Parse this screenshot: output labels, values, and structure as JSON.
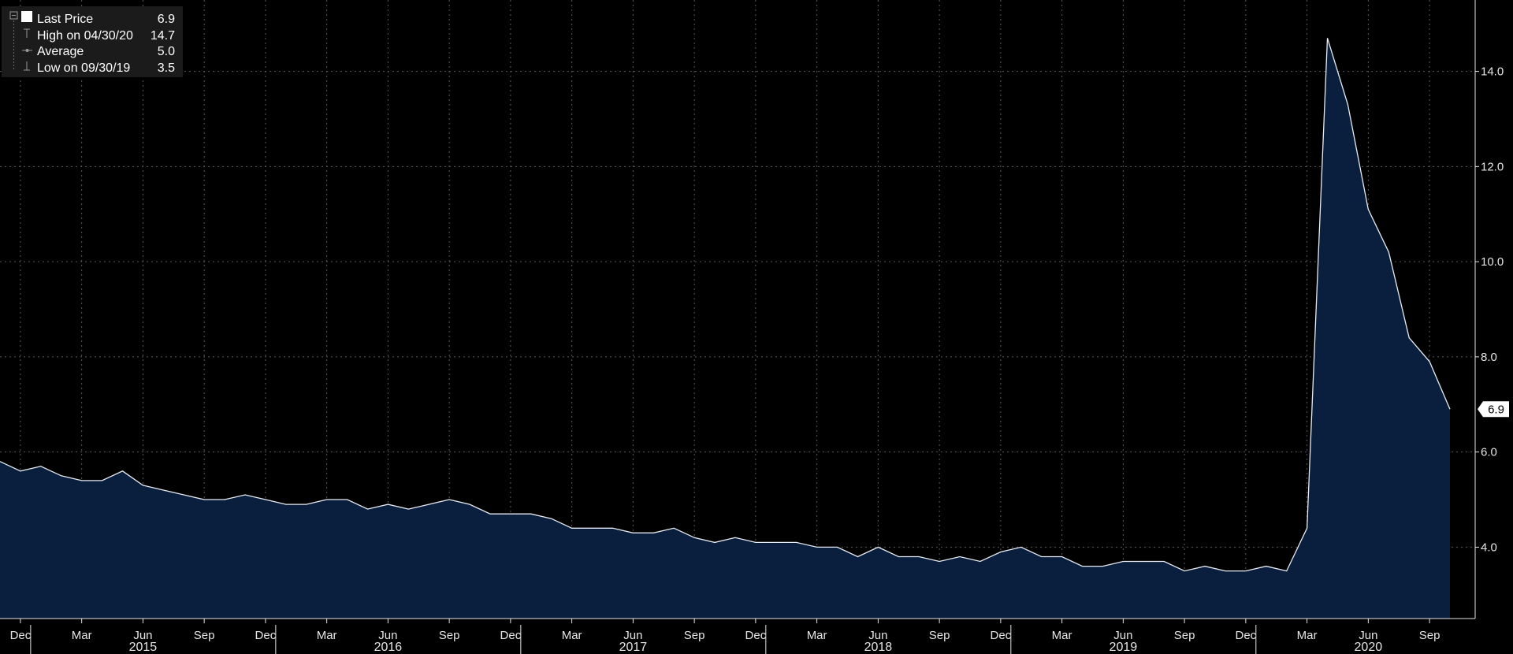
{
  "legend": {
    "items": [
      {
        "label": "Last Price",
        "value": "6.9",
        "symbol": "square-icon"
      },
      {
        "label": "High on 04/30/20",
        "value": "14.7",
        "symbol": "high-marker-icon"
      },
      {
        "label": "Average",
        "value": "5.0",
        "symbol": "average-marker-icon"
      },
      {
        "label": "Low on 09/30/19",
        "value": "3.5",
        "symbol": "low-marker-icon"
      }
    ]
  },
  "last_price_tag": "6.9",
  "colors": {
    "background": "#000000",
    "area_fill": "#0a1f3d",
    "line": "#e8ecf2",
    "grid": "#5a5a5a",
    "text": "#e6e6e6"
  },
  "chart_data": {
    "type": "area",
    "x": [
      "2014-11",
      "2014-12",
      "2015-01",
      "2015-02",
      "2015-03",
      "2015-04",
      "2015-05",
      "2015-06",
      "2015-07",
      "2015-08",
      "2015-09",
      "2015-10",
      "2015-11",
      "2015-12",
      "2016-01",
      "2016-02",
      "2016-03",
      "2016-04",
      "2016-05",
      "2016-06",
      "2016-07",
      "2016-08",
      "2016-09",
      "2016-10",
      "2016-11",
      "2016-12",
      "2017-01",
      "2017-02",
      "2017-03",
      "2017-04",
      "2017-05",
      "2017-06",
      "2017-07",
      "2017-08",
      "2017-09",
      "2017-10",
      "2017-11",
      "2017-12",
      "2018-01",
      "2018-02",
      "2018-03",
      "2018-04",
      "2018-05",
      "2018-06",
      "2018-07",
      "2018-08",
      "2018-09",
      "2018-10",
      "2018-11",
      "2018-12",
      "2019-01",
      "2019-02",
      "2019-03",
      "2019-04",
      "2019-05",
      "2019-06",
      "2019-07",
      "2019-08",
      "2019-09",
      "2019-10",
      "2019-11",
      "2019-12",
      "2020-01",
      "2020-02",
      "2020-03",
      "2020-04",
      "2020-05",
      "2020-06",
      "2020-07",
      "2020-08",
      "2020-09",
      "2020-10"
    ],
    "series": [
      {
        "values": [
          5.8,
          5.6,
          5.7,
          5.5,
          5.4,
          5.4,
          5.6,
          5.3,
          5.2,
          5.1,
          5.0,
          5.0,
          5.1,
          5.0,
          4.9,
          4.9,
          5.0,
          5.0,
          4.8,
          4.9,
          4.8,
          4.9,
          5.0,
          4.9,
          4.7,
          4.7,
          4.7,
          4.6,
          4.4,
          4.4,
          4.4,
          4.3,
          4.3,
          4.4,
          4.2,
          4.1,
          4.2,
          4.1,
          4.1,
          4.1,
          4.0,
          4.0,
          3.8,
          4.0,
          3.8,
          3.8,
          3.7,
          3.8,
          3.7,
          3.9,
          4.0,
          3.8,
          3.8,
          3.6,
          3.6,
          3.7,
          3.7,
          3.7,
          3.5,
          3.6,
          3.5,
          3.5,
          3.6,
          3.5,
          4.4,
          14.7,
          13.3,
          11.1,
          10.2,
          8.4,
          7.9,
          6.9
        ]
      }
    ],
    "y_ticks": [
      "4.0",
      "6.0",
      "8.0",
      "10.0",
      "12.0",
      "14.0"
    ],
    "ylim": [
      2.5,
      15.5
    ],
    "x_month_ticks": [
      {
        "label": "Dec",
        "at": "2014-12"
      },
      {
        "label": "Mar",
        "at": "2015-03"
      },
      {
        "label": "Jun",
        "at": "2015-06"
      },
      {
        "label": "Sep",
        "at": "2015-09"
      },
      {
        "label": "Dec",
        "at": "2015-12"
      },
      {
        "label": "Mar",
        "at": "2016-03"
      },
      {
        "label": "Jun",
        "at": "2016-06"
      },
      {
        "label": "Sep",
        "at": "2016-09"
      },
      {
        "label": "Dec",
        "at": "2016-12"
      },
      {
        "label": "Mar",
        "at": "2017-03"
      },
      {
        "label": "Jun",
        "at": "2017-06"
      },
      {
        "label": "Sep",
        "at": "2017-09"
      },
      {
        "label": "Dec",
        "at": "2017-12"
      },
      {
        "label": "Mar",
        "at": "2018-03"
      },
      {
        "label": "Jun",
        "at": "2018-06"
      },
      {
        "label": "Sep",
        "at": "2018-09"
      },
      {
        "label": "Dec",
        "at": "2018-12"
      },
      {
        "label": "Mar",
        "at": "2019-03"
      },
      {
        "label": "Jun",
        "at": "2019-06"
      },
      {
        "label": "Sep",
        "at": "2019-09"
      },
      {
        "label": "Dec",
        "at": "2019-12"
      },
      {
        "label": "Mar",
        "at": "2020-03"
      },
      {
        "label": "Jun",
        "at": "2020-06"
      },
      {
        "label": "Sep",
        "at": "2020-09"
      }
    ],
    "x_year_labels": [
      {
        "label": "2015",
        "at": "2015-06"
      },
      {
        "label": "2016",
        "at": "2016-06"
      },
      {
        "label": "2017",
        "at": "2017-06"
      },
      {
        "label": "2018",
        "at": "2018-06"
      },
      {
        "label": "2019",
        "at": "2019-06"
      },
      {
        "label": "2020",
        "at": "2020-06"
      }
    ],
    "year_boundaries": [
      "2014-12",
      "2015-12",
      "2016-12",
      "2017-12",
      "2018-12",
      "2019-12"
    ],
    "grid": true,
    "legend_position": "top-left"
  }
}
